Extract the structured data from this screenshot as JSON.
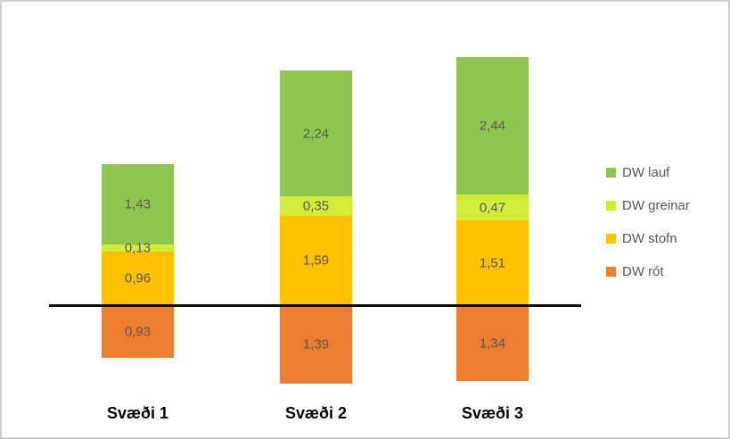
{
  "chart_data": {
    "type": "bar",
    "subtype": "stacked-column",
    "title": "",
    "xlabel": "",
    "ylabel": "",
    "categories": [
      "Svæði 1",
      "Svæði 2",
      "Svæði 3"
    ],
    "series": [
      {
        "name": "DW lauf",
        "color": "#8FC652",
        "values": [
          1.43,
          2.24,
          2.44
        ],
        "labels": [
          "1,43",
          "2,24",
          "2,44"
        ]
      },
      {
        "name": "DW greinar",
        "color": "#D2EC39",
        "values": [
          0.13,
          0.35,
          0.47
        ],
        "labels": [
          "0,13",
          "0,35",
          "0,47"
        ]
      },
      {
        "name": "DW stofn",
        "color": "#FFC000",
        "values": [
          0.96,
          1.59,
          1.51
        ],
        "labels": [
          "0,96",
          "1,59",
          "1,51"
        ]
      },
      {
        "name": "DW rót",
        "color": "#ED7D31",
        "values": [
          0.93,
          1.39,
          1.34
        ],
        "labels": [
          "0,93",
          "1,39",
          "1,34"
        ]
      }
    ],
    "below_axis_series": "DW rót",
    "baseline": 0,
    "gridlines": false,
    "legend_position": "right",
    "value_label_color": "#595959",
    "axis_line_color": "#0d0d0d",
    "decimal_separator": ","
  }
}
